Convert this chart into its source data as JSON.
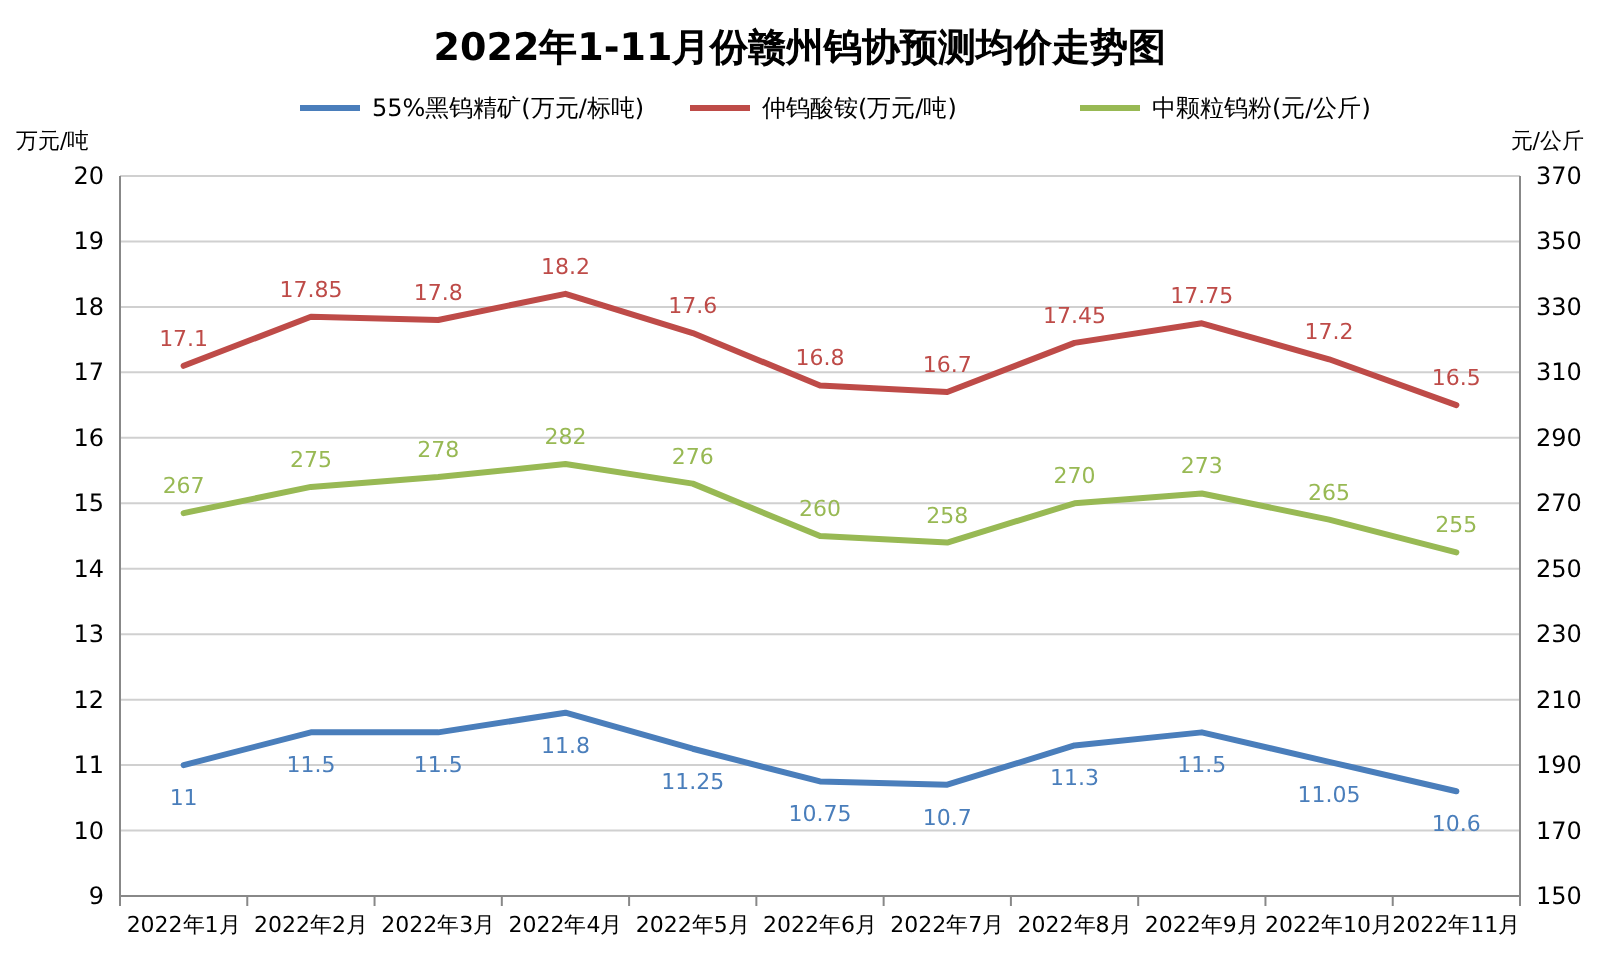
{
  "chart_data": {
    "type": "line",
    "title": "2022年1-11月份赣州钨协预测均价走势图",
    "categories": [
      "2022年1月",
      "2022年2月",
      "2022年3月",
      "2022年4月",
      "2022年5月",
      "2022年6月",
      "2022年7月",
      "2022年8月",
      "2022年9月",
      "2022年10月",
      "2022年11月"
    ],
    "series": [
      {
        "name": "55%黑钨精矿(万元/标吨)",
        "color": "#4a7ebb",
        "values": [
          11,
          11.5,
          11.5,
          11.8,
          11.25,
          10.75,
          10.7,
          11.3,
          11.5,
          11.05,
          10.6
        ]
      },
      {
        "name": "仲钨酸铵(万元/吨)",
        "color": "#be4b48",
        "values": [
          17.1,
          17.85,
          17.8,
          18.2,
          17.6,
          16.8,
          16.7,
          17.45,
          17.75,
          17.2,
          16.5
        ]
      },
      {
        "name": "中颗粒钨粉(元/公斤)",
        "color": "#98b954",
        "axis": "y2",
        "values": [
          267,
          275,
          278,
          282,
          276,
          260,
          258,
          270,
          273,
          265,
          255
        ]
      }
    ],
    "ylabel": "万元/吨",
    "y2label": "元/公斤",
    "ylim": [
      9,
      20
    ],
    "yticks": [
      9,
      10,
      11,
      12,
      13,
      14,
      15,
      16,
      17,
      18,
      19,
      20
    ],
    "y2lim": [
      150,
      370
    ],
    "y2ticks": [
      150,
      170,
      190,
      210,
      230,
      250,
      270,
      290,
      310,
      330,
      350,
      370
    ],
    "grid": "y",
    "legend": "top",
    "data_labels": true
  }
}
